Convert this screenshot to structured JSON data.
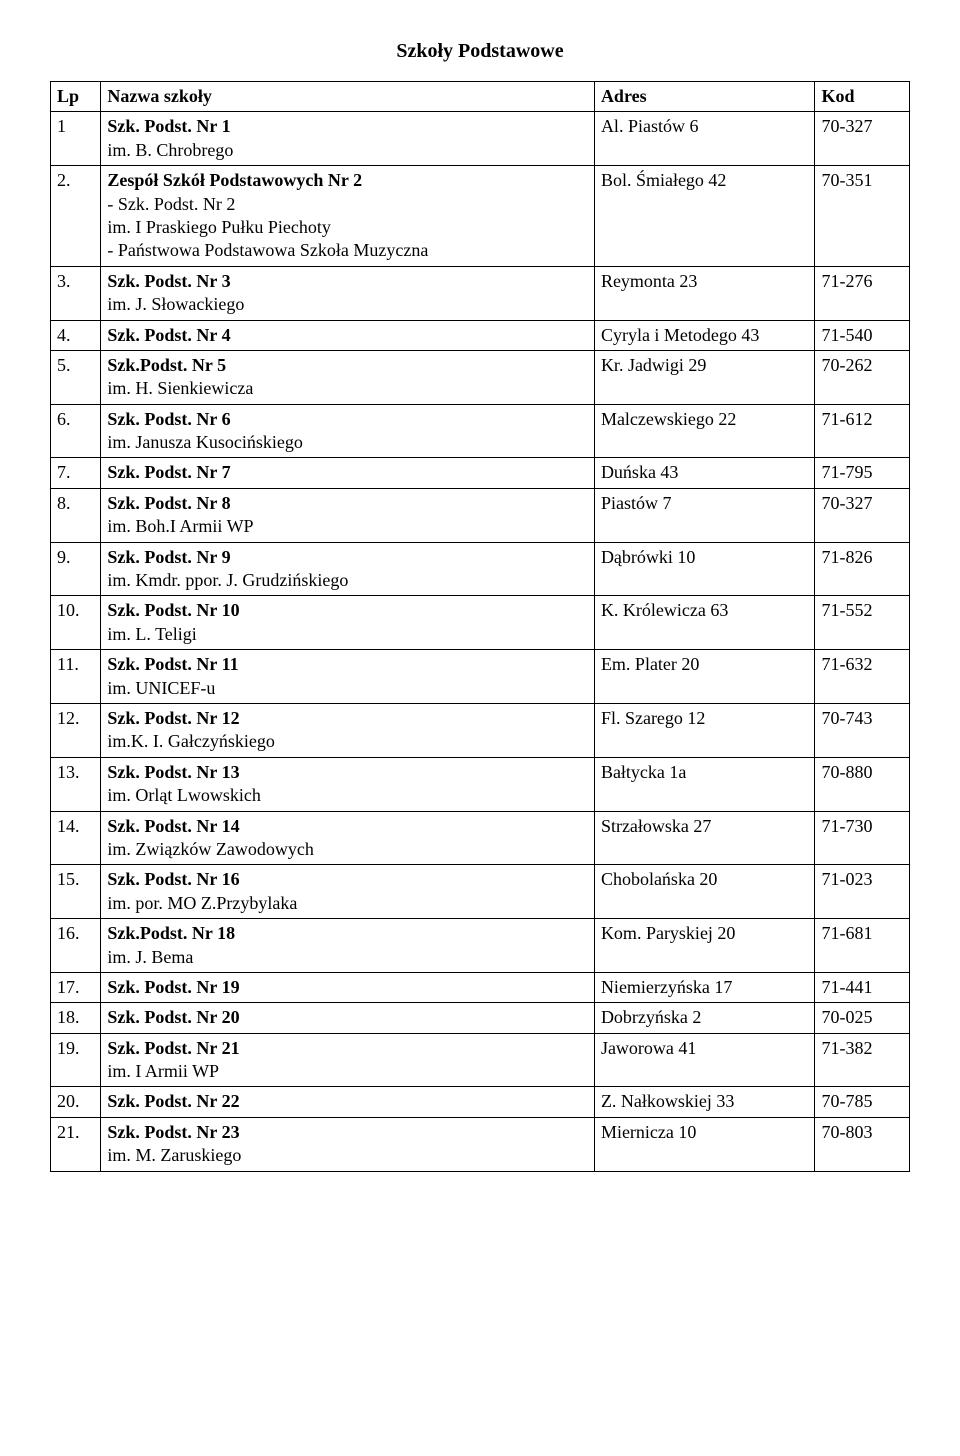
{
  "page": {
    "title": "Szkoły Podstawowe",
    "headers": {
      "lp": "Lp",
      "nazwa": "Nazwa szkoły",
      "adres": "Adres",
      "kod": "Kod"
    },
    "rows": [
      {
        "lp": "1",
        "name": "Szk. Podst. Nr 1",
        "sub": "im. B. Chrobrego",
        "adres": "Al. Piastów 6",
        "kod": "70-327"
      },
      {
        "lp": "2.",
        "name": "Zespół Szkół Podstawowych Nr 2",
        "sub": "- Szk. Podst. Nr 2\nim. I Praskiego Pułku Piechoty\n- Państwowa Podstawowa Szkoła Muzyczna",
        "adres": "Bol. Śmiałego 42",
        "kod": "70-351"
      },
      {
        "lp": "3.",
        "name": "Szk. Podst. Nr 3",
        "sub": "im. J. Słowackiego",
        "adres": "Reymonta 23",
        "kod": "71-276"
      },
      {
        "lp": "4.",
        "name": "Szk. Podst. Nr 4",
        "sub": "",
        "adres": "Cyryla i Metodego 43",
        "kod": "71-540"
      },
      {
        "lp": "5.",
        "name": "Szk.Podst. Nr 5",
        "sub": "im. H. Sienkiewicza",
        "adres": "Kr. Jadwigi 29",
        "kod": "70-262"
      },
      {
        "lp": "6.",
        "name": "Szk. Podst. Nr 6",
        "sub": "im. Janusza Kusocińskiego",
        "adres": "Malczewskiego 22",
        "kod": "71-612"
      },
      {
        "lp": "7.",
        "name": "Szk. Podst. Nr 7",
        "sub": "",
        "adres": "Duńska 43",
        "kod": "71-795"
      },
      {
        "lp": "8.",
        "name": "Szk. Podst. Nr 8",
        "sub": "im. Boh.I Armii WP",
        "adres": "Piastów 7",
        "kod": "70-327"
      },
      {
        "lp": "9.",
        "name": "Szk. Podst. Nr 9",
        "sub": "im. Kmdr. ppor. J. Grudzińskiego",
        "adres": "Dąbrówki 10",
        "kod": "71-826"
      },
      {
        "lp": "10.",
        "name": "Szk. Podst. Nr 10",
        "sub": "im. L. Teligi",
        "adres": "K. Królewicza 63",
        "kod": "71-552"
      },
      {
        "lp": "11.",
        "name": "Szk. Podst. Nr 11",
        "sub": "im. UNICEF-u",
        "adres": "Em. Plater 20",
        "kod": "71-632"
      },
      {
        "lp": "12.",
        "name": "Szk. Podst. Nr 12",
        "sub": "im.K. I. Gałczyńskiego",
        "adres": "Fl. Szarego 12",
        "kod": "70-743"
      },
      {
        "lp": "13.",
        "name": "Szk. Podst. Nr 13",
        "sub": "im. Orląt Lwowskich",
        "adres": "Bałtycka 1a",
        "kod": "70-880"
      },
      {
        "lp": "14.",
        "name": "Szk. Podst. Nr 14",
        "sub": "im. Związków Zawodowych",
        "adres": "Strzałowska 27",
        "kod": "71-730"
      },
      {
        "lp": "15.",
        "name": "Szk. Podst. Nr 16",
        "sub": "im. por. MO Z.Przybylaka",
        "adres": "Chobolańska 20",
        "kod": "71-023"
      },
      {
        "lp": "16.",
        "name": "Szk.Podst. Nr 18",
        "sub": "im. J. Bema",
        "adres": "Kom. Paryskiej 20",
        "kod": "71-681"
      },
      {
        "lp": "17.",
        "name": "Szk. Podst. Nr 19",
        "sub": "",
        "adres": "Niemierzyńska 17",
        "kod": "71-441"
      },
      {
        "lp": "18.",
        "name": "Szk. Podst. Nr 20",
        "sub": "",
        "adres": "Dobrzyńska 2",
        "kod": "70-025"
      },
      {
        "lp": "19.",
        "name": "Szk. Podst. Nr 21",
        "sub": "im. I Armii WP",
        "adres": "Jaworowa 41",
        "kod": "71-382"
      },
      {
        "lp": "20.",
        "name": "Szk. Podst. Nr 22",
        "sub": "",
        "adres": "Z. Nałkowskiej 33",
        "kod": "70-785"
      },
      {
        "lp": "21.",
        "name": "Szk. Podst. Nr 23",
        "sub": "im. M. Zaruskiego",
        "adres": "Miernicza 10",
        "kod": "70-803"
      }
    ]
  }
}
